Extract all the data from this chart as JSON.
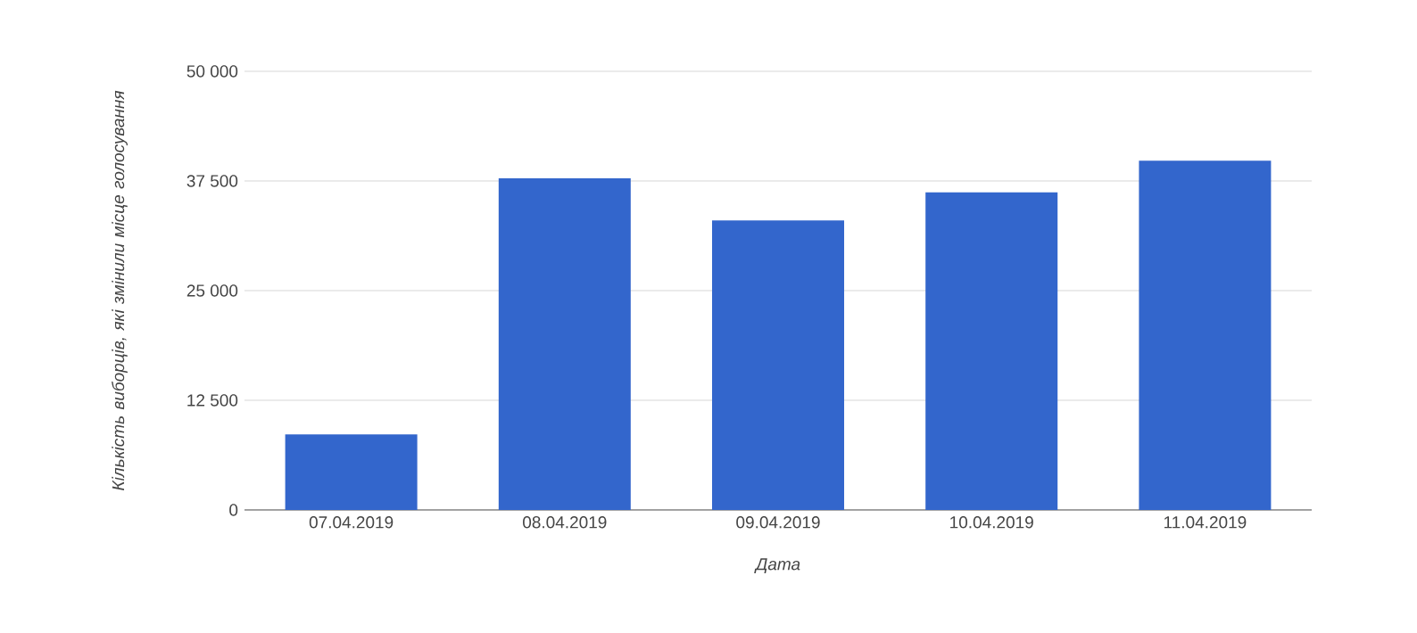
{
  "chart_data": {
    "type": "bar",
    "xlabel": "Дата",
    "ylabel": "Кількість виборців, які змінили місце голосування",
    "categories": [
      "07.04.2019",
      "08.04.2019",
      "09.04.2019",
      "10.04.2019",
      "11.04.2019"
    ],
    "values": [
      8600,
      37800,
      33000,
      36200,
      39800
    ],
    "color": "#3366cc",
    "ylim": [
      0,
      50000
    ],
    "yticks": [
      0,
      {
        "value": 12500,
        "label": "12 500"
      },
      {
        "value": 25000,
        "label": "25 000"
      },
      {
        "value": 37500,
        "label": "37 500"
      },
      {
        "value": 50000,
        "label": "50 000"
      }
    ],
    "grid": "y"
  }
}
